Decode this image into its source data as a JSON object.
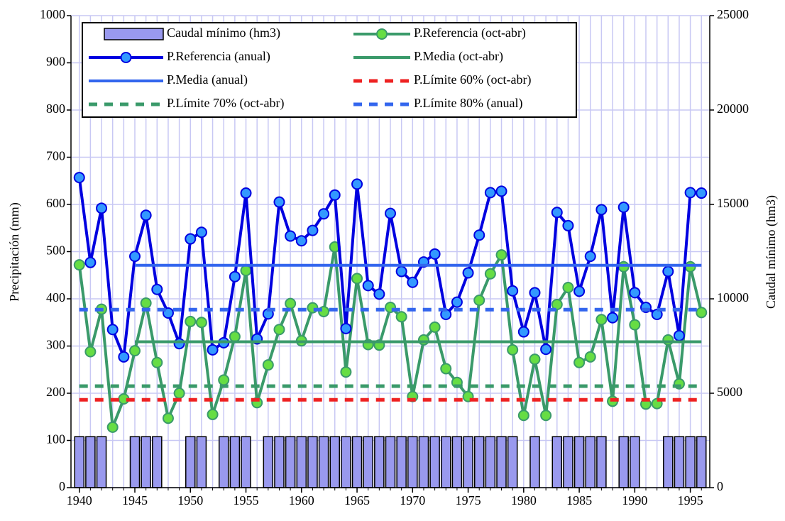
{
  "chart_data": {
    "type": "combo",
    "ylabel": "Precipitación (mm)",
    "y2label": "Caudal mínimo (hm3)",
    "xlim": [
      1939.25,
      1996.75
    ],
    "xticks": [
      1940,
      1945,
      1950,
      1955,
      1960,
      1965,
      1970,
      1975,
      1980,
      1985,
      1990,
      1995
    ],
    "ylim": [
      0,
      1000
    ],
    "yticks": [
      0,
      100,
      200,
      300,
      400,
      500,
      600,
      700,
      800,
      900,
      1000
    ],
    "y2lim": [
      0,
      25000
    ],
    "y2ticks": [
      0,
      5000,
      10000,
      15000,
      20000,
      25000
    ],
    "grid": true,
    "x": [
      1940,
      1941,
      1942,
      1943,
      1944,
      1945,
      1946,
      1947,
      1948,
      1949,
      1950,
      1951,
      1952,
      1953,
      1954,
      1955,
      1956,
      1957,
      1958,
      1959,
      1960,
      1961,
      1962,
      1963,
      1964,
      1965,
      1966,
      1967,
      1968,
      1969,
      1970,
      1971,
      1972,
      1973,
      1974,
      1975,
      1976,
      1977,
      1978,
      1979,
      1980,
      1981,
      1982,
      1983,
      1984,
      1985,
      1986,
      1987,
      1988,
      1989,
      1990,
      1991,
      1992,
      1993,
      1994,
      1995,
      1996
    ],
    "series": [
      {
        "name": "Caudal mínimo (hm3)",
        "type": "bar",
        "axis": "y2",
        "color": "#9999ee",
        "values": [
          2700,
          2700,
          2700,
          null,
          null,
          2700,
          2700,
          2700,
          null,
          null,
          2700,
          2700,
          null,
          2700,
          2700,
          2700,
          null,
          2700,
          2700,
          2700,
          2700,
          2700,
          2700,
          2700,
          2700,
          2700,
          2700,
          2700,
          2700,
          2700,
          2700,
          2700,
          2700,
          2700,
          2700,
          2700,
          2700,
          2700,
          2700,
          2700,
          null,
          2700,
          null,
          2700,
          2700,
          2700,
          2700,
          2700,
          null,
          2700,
          2700,
          null,
          null,
          2700,
          2700,
          2700,
          2700
        ]
      },
      {
        "name": "P.Referencia (oct-abr)",
        "type": "line",
        "color": "#3a9a6a",
        "marker": "#66dd44",
        "values": [
          472,
          288,
          378,
          128,
          188,
          290,
          391,
          265,
          147,
          200,
          352,
          350,
          155,
          228,
          320,
          460,
          180,
          260,
          335,
          390,
          311,
          381,
          373,
          510,
          245,
          443,
          303,
          302,
          382,
          362,
          193,
          313,
          340,
          252,
          223,
          193,
          397,
          453,
          493,
          292,
          153,
          272,
          153,
          388,
          424,
          265,
          277,
          356,
          183,
          468,
          345,
          177,
          178,
          313,
          220,
          468,
          371
        ]
      },
      {
        "name": "P.Referencia (anual)",
        "type": "line",
        "color": "#0000e0",
        "marker": "#3399ff",
        "values": [
          657,
          477,
          592,
          335,
          277,
          490,
          577,
          420,
          370,
          305,
          527,
          541,
          292,
          307,
          447,
          624,
          315,
          368,
          605,
          533,
          523,
          545,
          580,
          620,
          337,
          643,
          428,
          410,
          581,
          458,
          435,
          478,
          495,
          367,
          393,
          455,
          535,
          625,
          628,
          417,
          330,
          413,
          293,
          583,
          555,
          416,
          490,
          589,
          360,
          594,
          413,
          382,
          367,
          458,
          322,
          625,
          624
        ]
      },
      {
        "name": "P.Media (oct-abr)",
        "type": "line",
        "color": "#3a9a6a",
        "x": [
          1945,
          1996
        ],
        "values": [
          309,
          309
        ]
      },
      {
        "name": "P.Media (anual)",
        "type": "line",
        "color": "#3366ee",
        "x": [
          1945,
          1996
        ],
        "values": [
          471,
          471
        ]
      },
      {
        "name": "P.Límite 60% (oct-abr)",
        "type": "line",
        "color": "#ee2222",
        "dashed": true,
        "x": [
          1940,
          1996
        ],
        "values": [
          186,
          186
        ]
      },
      {
        "name": "P.Límite 70% (oct-abr)",
        "type": "line",
        "color": "#3a9a6a",
        "dashed": true,
        "x": [
          1940,
          1996
        ],
        "values": [
          215,
          215
        ]
      },
      {
        "name": "P.Límite 80% (anual)",
        "type": "line",
        "color": "#3366ee",
        "dashed": true,
        "x": [
          1940,
          1996
        ],
        "values": [
          377,
          377
        ]
      }
    ]
  }
}
